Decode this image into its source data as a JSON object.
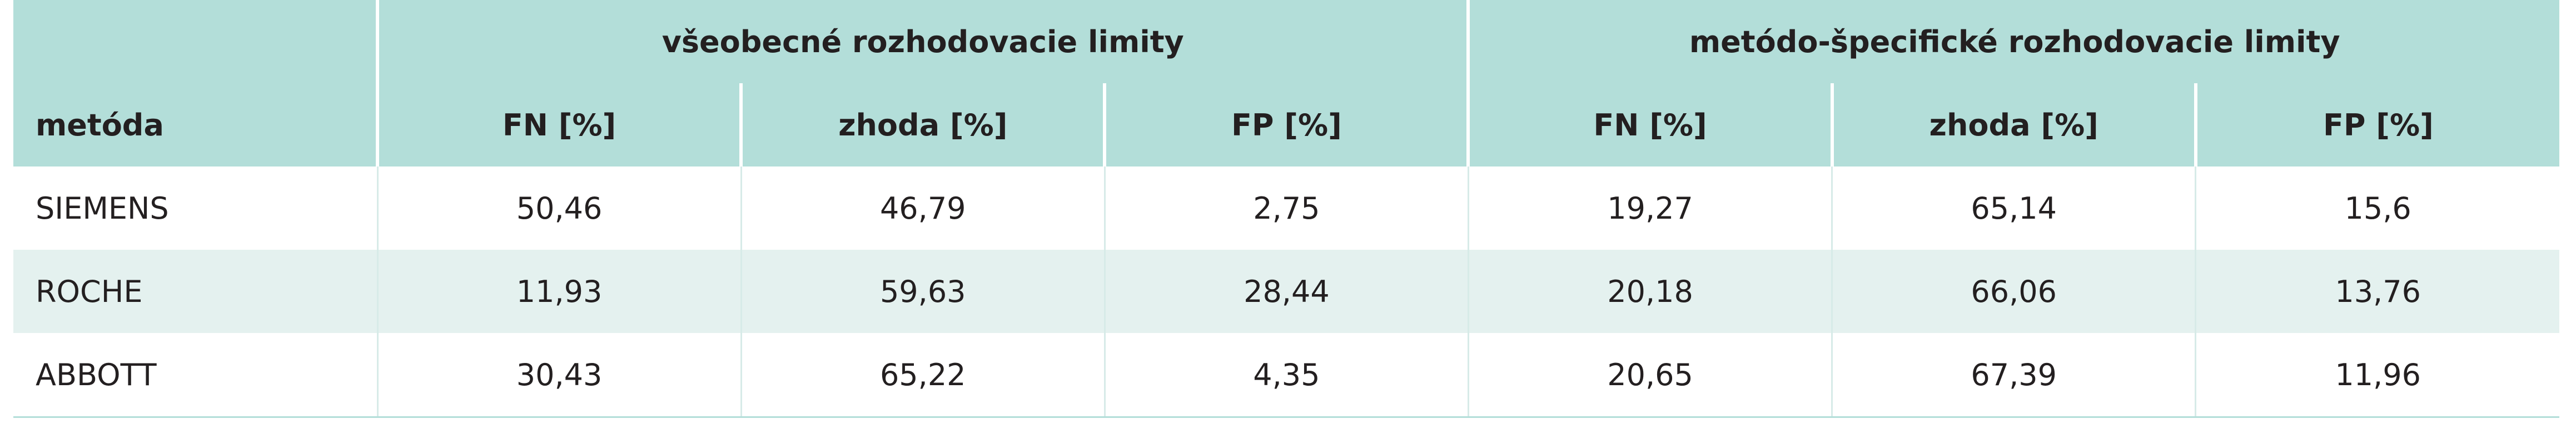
{
  "table": {
    "group_headers": [
      "všeobecné rozhodovacie limity",
      "metódo-špecifické rozhodovacie limity"
    ],
    "columns": [
      "metóda",
      "FN [%]",
      "zhoda [%]",
      "FP [%]",
      "FN [%]",
      "zhoda [%]",
      "FP [%]"
    ],
    "rows": [
      [
        "SIEMENS",
        "50,46",
        "46,79",
        "2,75",
        "19,27",
        "65,14",
        "15,6"
      ],
      [
        "ROCHE",
        "11,93",
        "59,63",
        "28,44",
        "20,18",
        "66,06",
        "13,76"
      ],
      [
        "ABBOTT",
        "30,43",
        "65,22",
        "4,35",
        "20,65",
        "67,39",
        "11,96"
      ]
    ]
  }
}
